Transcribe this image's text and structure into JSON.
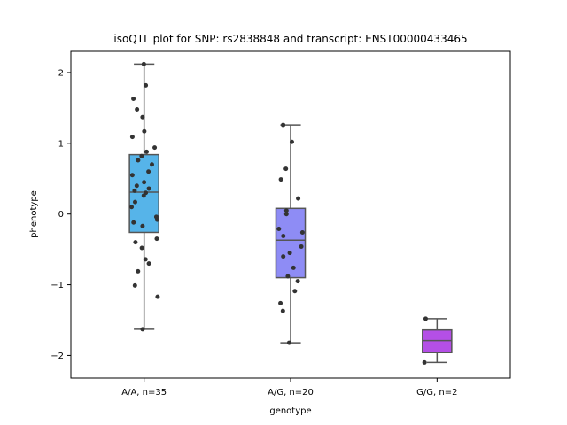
{
  "chart_data": {
    "type": "box",
    "title": "isoQTL plot for SNP: rs2838848 and transcript: ENST00000433465",
    "xlabel": "genotype",
    "ylabel": "phenotype",
    "ylim": [
      -2.32,
      2.3
    ],
    "yticks": [
      -2,
      -1,
      0,
      1,
      2
    ],
    "grid": false,
    "categories": [
      "A/A, n=35",
      "A/G, n=20",
      "G/G, n=2"
    ],
    "colors": {
      "A/A, n=35": "#56b4e9",
      "A/G, n=20": "#8e8cf5",
      "G/G, n=2": "#b44fe6",
      "box_edge": "#555555",
      "points": "#333333"
    },
    "boxes": [
      {
        "category": "A/A, n=35",
        "whisker_low": -1.63,
        "q1": -0.26,
        "median": 0.31,
        "q3": 0.84,
        "whisker_high": 2.12
      },
      {
        "category": "A/G, n=20",
        "whisker_low": -1.82,
        "q1": -0.9,
        "median": -0.37,
        "q3": 0.08,
        "whisker_high": 1.26
      },
      {
        "category": "G/G, n=2",
        "whisker_low": -2.1,
        "q1": -1.96,
        "median": -1.79,
        "q3": -1.64,
        "whisker_high": -1.48
      }
    ],
    "points": [
      {
        "category": "A/A, n=35",
        "values": [
          2.12,
          1.82,
          1.63,
          1.48,
          1.37,
          1.17,
          1.09,
          0.94,
          0.88,
          0.82,
          0.76,
          0.7,
          0.6,
          0.55,
          0.45,
          0.4,
          0.36,
          0.33,
          0.3,
          0.26,
          0.17,
          0.1,
          -0.04,
          -0.08,
          -0.12,
          -0.17,
          -0.35,
          -0.4,
          -0.48,
          -0.64,
          -0.7,
          -0.81,
          -1.01,
          -1.17,
          -1.63
        ]
      },
      {
        "category": "A/G, n=20",
        "values": [
          1.26,
          1.02,
          0.64,
          0.49,
          0.22,
          0.05,
          0.0,
          -0.21,
          -0.26,
          -0.31,
          -0.46,
          -0.55,
          -0.6,
          -0.76,
          -0.88,
          -0.95,
          -1.09,
          -1.26,
          -1.37,
          -1.82
        ]
      },
      {
        "category": "G/G, n=2",
        "values": [
          -1.48,
          -2.1
        ]
      }
    ]
  }
}
